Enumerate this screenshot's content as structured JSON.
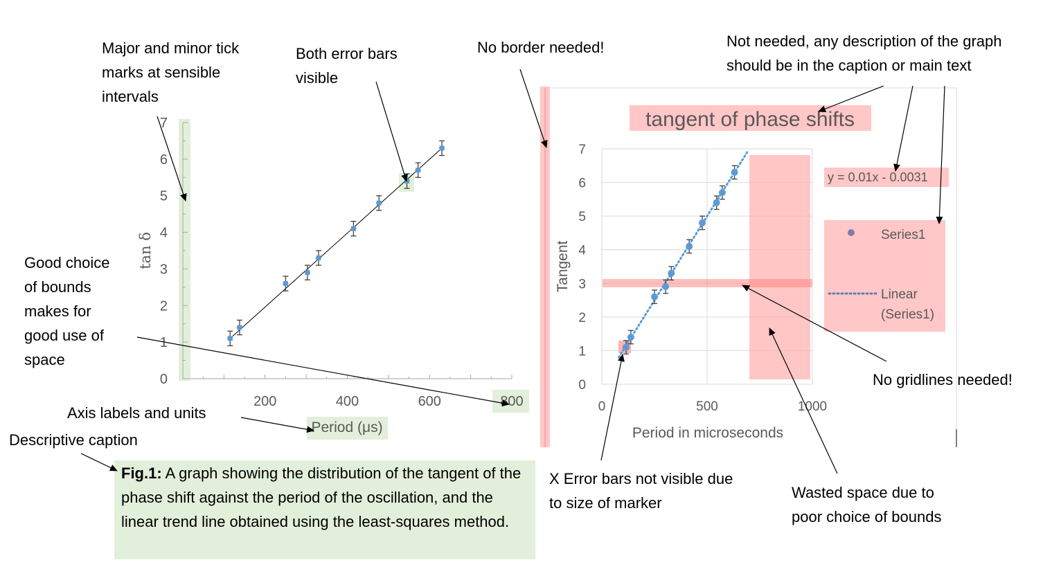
{
  "annotations": {
    "tick_marks": "Major and minor tick\nmarks at sensible\nintervals",
    "error_bars": "Both error bars\nvisible",
    "no_border": "No border needed!",
    "not_needed": "Not needed, any description of the graph\nshould be in the caption or main text",
    "bounds": "Good choice\nof bounds\nmakes for\ngood use of\nspace",
    "axis_labels": "Axis labels and units",
    "descriptive_caption": "Descriptive caption",
    "no_gridlines": "No gridlines needed!",
    "x_error_bars": "X Error bars not visible due\nto size of marker",
    "wasted_space": "Wasted space due to\npoor choice of bounds"
  },
  "caption": {
    "label": "Fig.1:",
    "text": " A graph showing the distribution of the tangent of the phase shift against the period of the oscillation, and the linear trend line obtained using the least-squares method."
  },
  "colors": {
    "good_highlight": "#e2efda",
    "bad_highlight": "#ffc7c7",
    "marker": "#5b9bd5",
    "axis_text": "#595959",
    "error_bar": "#404040"
  },
  "chart_data": [
    {
      "type": "scatter",
      "title": "",
      "xlabel": "Period (μs)",
      "ylabel": "tan δ",
      "xlim": [
        0,
        800
      ],
      "ylim": [
        0,
        7
      ],
      "x_ticks": [
        "200",
        "400",
        "600",
        "800"
      ],
      "y_ticks": [
        "0",
        "1",
        "2",
        "3",
        "4",
        "5",
        "6",
        "7"
      ],
      "grid": false,
      "legend": "none",
      "trendline": "linear",
      "series": [
        {
          "x": [
            115,
            138,
            250,
            303,
            330,
            415,
            477,
            545,
            572,
            630
          ],
          "values": [
            1.1,
            1.4,
            2.6,
            2.9,
            3.3,
            4.1,
            4.8,
            5.4,
            5.7,
            6.3
          ]
        }
      ]
    },
    {
      "type": "scatter",
      "title": "tangent of phase shifts",
      "xlabel": "Period in microseconds",
      "ylabel": "Tangent",
      "xlim": [
        0,
        1000
      ],
      "ylim": [
        0,
        7
      ],
      "x_ticks": [
        "0",
        "500",
        "1000"
      ],
      "y_ticks": [
        "0",
        "1",
        "2",
        "3",
        "4",
        "5",
        "6",
        "7"
      ],
      "grid": true,
      "legend": "right",
      "legend_entries": [
        "Series1",
        "Linear\n(Series1)"
      ],
      "equation": "y = 0.01x - 0.0031",
      "trendline": "linear",
      "series": [
        {
          "name": "Series1",
          "x": [
            115,
            138,
            250,
            303,
            330,
            415,
            477,
            545,
            572,
            630
          ],
          "values": [
            1.1,
            1.4,
            2.6,
            2.9,
            3.3,
            4.1,
            4.8,
            5.4,
            5.7,
            6.3
          ]
        }
      ]
    }
  ]
}
